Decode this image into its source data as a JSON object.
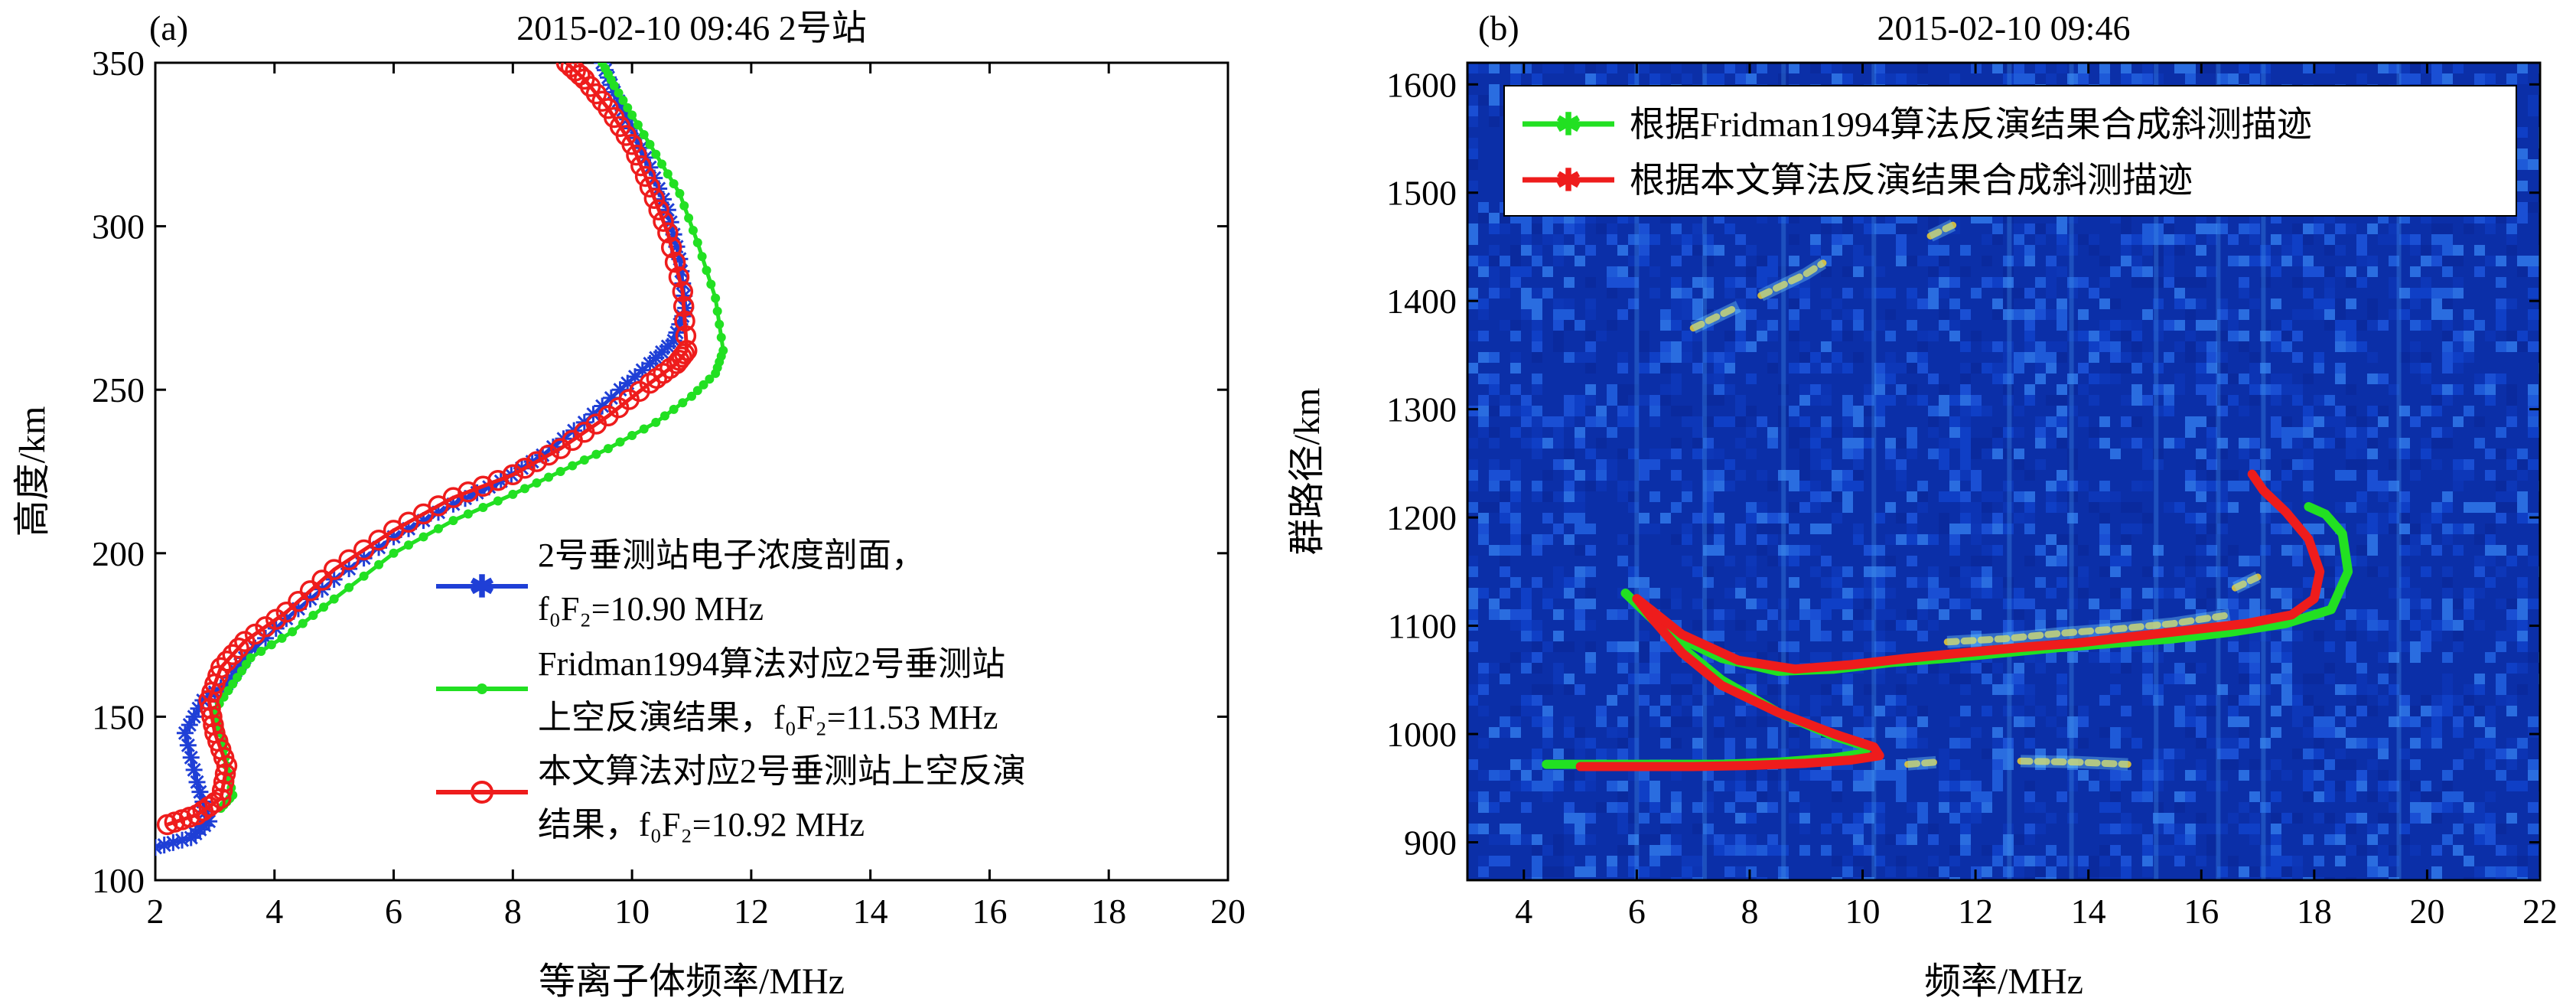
{
  "colors": {
    "blue": "#1f3fd6",
    "green": "#22e022",
    "red": "#ee1c1c",
    "axis": "#000000",
    "heat_base": "#0b2fa8"
  },
  "chart_data": [
    {
      "type": "line",
      "panel_label": "(a)",
      "title": "2015-02-10  09:46  2号站",
      "xlabel": "等离子体频率/MHz",
      "ylabel": "高度/km",
      "xlim": [
        2,
        20
      ],
      "ylim": [
        100,
        350
      ],
      "xticks": [
        2,
        4,
        6,
        8,
        10,
        12,
        14,
        16,
        18,
        20
      ],
      "yticks": [
        100,
        150,
        200,
        250,
        300,
        350
      ],
      "legend_position": "bottom-right",
      "series": [
        {
          "name": "2号垂测站电子浓度剖面，",
          "legend_lines": [
            "2号垂测站电子浓度剖面，",
            "f₀F₂=10.90 MHz"
          ],
          "marker": "asterisk",
          "color": "#1f3fd6",
          "x": [
            2.0,
            2.6,
            2.9,
            2.7,
            2.5,
            2.8,
            3.2,
            3.5,
            4.2,
            5.0,
            6.0,
            7.0,
            7.8,
            8.5,
            9.2,
            9.8,
            10.3,
            10.7,
            10.9,
            10.8,
            10.6,
            10.3,
            10.0,
            9.7,
            9.5
          ],
          "y": [
            110,
            113,
            118,
            130,
            145,
            155,
            160,
            168,
            180,
            192,
            205,
            215,
            222,
            230,
            240,
            250,
            258,
            265,
            275,
            290,
            305,
            318,
            330,
            341,
            350
          ]
        },
        {
          "name": "Fridman1994算法对应2号垂测站",
          "legend_lines": [
            "Fridman1994算法对应2号垂测站",
            "上空反演结果，f₀F₂=11.53 MHz"
          ],
          "marker": "dot",
          "color": "#22e022",
          "x": [
            3.1,
            3.3,
            3.2,
            3.1,
            3.0,
            3.3,
            3.6,
            4.3,
            5.0,
            6.0,
            7.0,
            8.0,
            8.8,
            9.6,
            10.4,
            11.0,
            11.4,
            11.53,
            11.4,
            11.1,
            10.8,
            10.4,
            10.0,
            9.7,
            9.5
          ],
          "y": [
            122,
            126,
            135,
            145,
            152,
            160,
            168,
            176,
            186,
            200,
            210,
            218,
            225,
            232,
            240,
            248,
            255,
            262,
            278,
            295,
            310,
            322,
            334,
            343,
            350
          ]
        },
        {
          "name": "本文算法对应2号垂测站上空反演",
          "legend_lines": [
            "本文算法对应2号垂测站上空反演",
            "结果，f₀F₂=10.92 MHz"
          ],
          "marker": "circle",
          "color": "#ee1c1c",
          "x": [
            2.2,
            2.7,
            3.1,
            3.2,
            3.0,
            2.9,
            3.1,
            3.5,
            4.2,
            5.0,
            6.0,
            7.0,
            8.0,
            8.8,
            9.6,
            10.3,
            10.75,
            10.92,
            10.85,
            10.6,
            10.3,
            10.0,
            9.6,
            9.2,
            8.9
          ],
          "y": [
            117,
            120,
            125,
            135,
            145,
            155,
            165,
            173,
            182,
            195,
            207,
            217,
            224,
            232,
            242,
            252,
            258,
            262,
            280,
            298,
            312,
            325,
            336,
            345,
            350
          ]
        }
      ]
    },
    {
      "type": "heatmap",
      "panel_label": "(b)",
      "title": "2015-02-10  09:46",
      "xlabel": "频率/MHz",
      "ylabel": "群路径/km",
      "xlim": [
        3,
        22
      ],
      "ylim": [
        865,
        1620
      ],
      "xticks": [
        4,
        6,
        8,
        10,
        12,
        14,
        16,
        18,
        20,
        22
      ],
      "yticks": [
        900,
        1000,
        1100,
        1200,
        1300,
        1400,
        1500,
        1600
      ],
      "legend_position": "top",
      "series": [
        {
          "name": "根据Fridman1994算法反演结果合成斜测描迹",
          "color": "#22e022",
          "segments": [
            {
              "x": [
                4.4,
                5.5,
                6.5,
                7.5,
                8.5,
                9.5,
                10.0,
                10.1,
                9.5,
                8.5,
                7.5,
                6.8,
                6.2,
                5.8
              ],
              "y": [
                972,
                972,
                972,
                972,
                974,
                978,
                982,
                988,
                998,
                1020,
                1050,
                1080,
                1110,
                1130
              ]
            },
            {
              "x": [
                5.8,
                6.5,
                7.5,
                8.5,
                9.5,
                10.5,
                11.5,
                12.5,
                13.5,
                14.5,
                15.5,
                16.5,
                17.5,
                18.3,
                18.6,
                18.5,
                18.2,
                17.9
              ],
              "y": [
                1130,
                1095,
                1070,
                1058,
                1060,
                1066,
                1070,
                1075,
                1080,
                1084,
                1088,
                1094,
                1102,
                1115,
                1150,
                1185,
                1203,
                1210
              ]
            }
          ]
        },
        {
          "name": "根据本文算法反演结果合成斜测描迹",
          "color": "#ee1c1c",
          "segments": [
            {
              "x": [
                5.0,
                6.0,
                7.0,
                8.0,
                9.0,
                9.8,
                10.3,
                10.2,
                9.5,
                8.5,
                7.5,
                6.8,
                6.3,
                6.0
              ],
              "y": [
                970,
                970,
                970,
                971,
                973,
                976,
                980,
                988,
                1000,
                1020,
                1045,
                1075,
                1105,
                1125
              ]
            },
            {
              "x": [
                6.0,
                6.8,
                7.8,
                8.8,
                9.8,
                10.8,
                11.8,
                12.8,
                13.8,
                14.8,
                15.8,
                16.8,
                17.6,
                18.0,
                18.1,
                17.9,
                17.5,
                17.1,
                16.9
              ],
              "y": [
                1125,
                1092,
                1068,
                1060,
                1064,
                1070,
                1075,
                1080,
                1084,
                1090,
                1096,
                1102,
                1110,
                1125,
                1150,
                1180,
                1205,
                1225,
                1240
              ]
            }
          ]
        }
      ],
      "echo_traces": [
        {
          "x": [
            8.2,
            8.6,
            9.0,
            9.3
          ],
          "y": [
            1405,
            1415,
            1425,
            1435
          ]
        },
        {
          "x": [
            7.0,
            7.4,
            7.8
          ],
          "y": [
            1375,
            1385,
            1395
          ]
        },
        {
          "x": [
            11.2,
            11.6
          ],
          "y": [
            1460,
            1470
          ]
        },
        {
          "x": [
            11.5,
            12.5,
            13.5,
            14.5,
            15.5,
            16.5
          ],
          "y": [
            1085,
            1088,
            1093,
            1097,
            1102,
            1110
          ]
        },
        {
          "x": [
            10.8,
            11.3
          ],
          "y": [
            972,
            974
          ]
        },
        {
          "x": [
            12.8,
            13.8,
            14.7
          ],
          "y": [
            975,
            974,
            972
          ]
        },
        {
          "x": [
            16.6,
            17.0
          ],
          "y": [
            1135,
            1145
          ]
        }
      ]
    }
  ]
}
